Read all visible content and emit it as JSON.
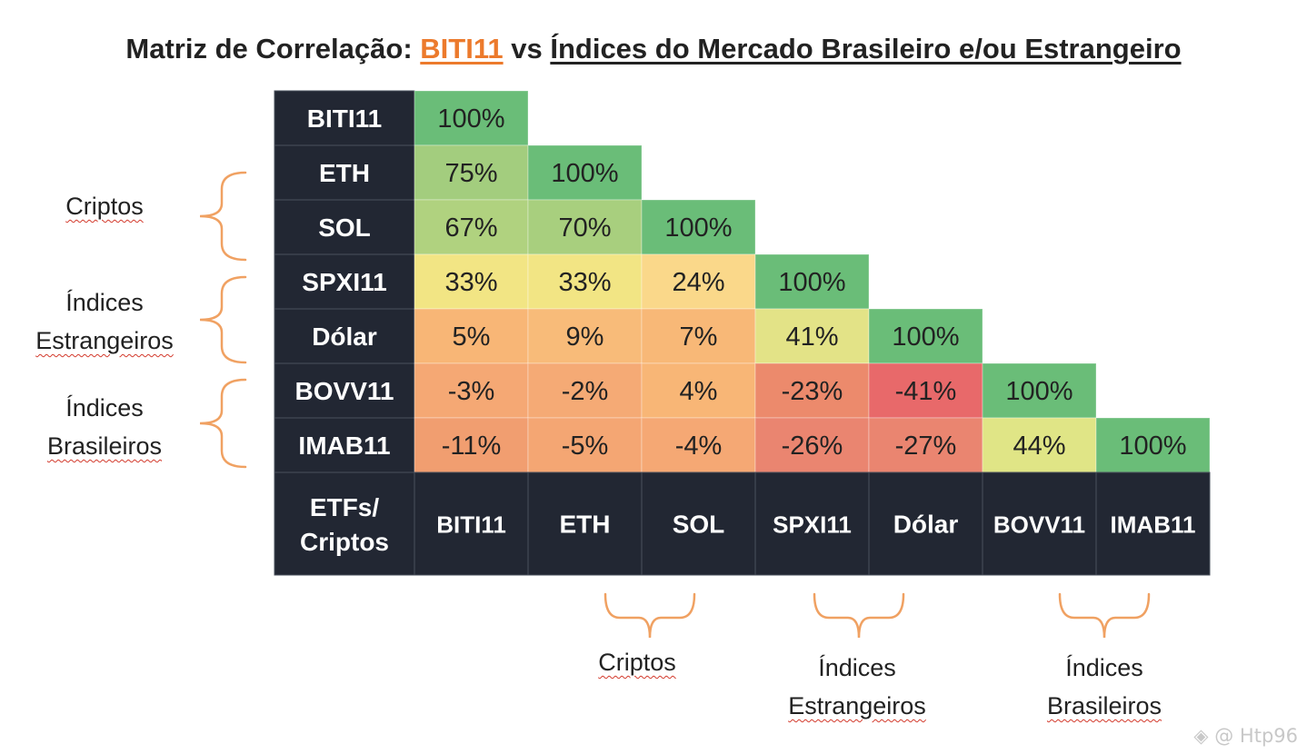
{
  "title": {
    "prefix": "Matriz de Correlação:",
    "highlight": "BITI11",
    "middle": "vs",
    "underlined": "Índices do Mercado Brasileiro e/ou Estrangeiro"
  },
  "colors": {
    "header_bg": "#222733",
    "header_text": "#ffffff",
    "accent": "#ec7a2c",
    "brace": "#f0a162"
  },
  "chart_data": {
    "type": "heatmap",
    "title": "Matriz de Correlação: BITI11 vs Índices do Mercado Brasileiro e/ou Estrangeiro",
    "rows": [
      "BITI11",
      "ETH",
      "SOL",
      "SPXI11",
      "Dólar",
      "BOVV11",
      "IMAB11"
    ],
    "columns": [
      "BITI11",
      "ETH",
      "SOL",
      "SPXI11",
      "Dólar",
      "BOVV11",
      "IMAB11"
    ],
    "corner_label": [
      "ETFs/",
      "Criptos"
    ],
    "values": [
      [
        100,
        null,
        null,
        null,
        null,
        null,
        null
      ],
      [
        75,
        100,
        null,
        null,
        null,
        null,
        null
      ],
      [
        67,
        70,
        100,
        null,
        null,
        null,
        null
      ],
      [
        33,
        33,
        24,
        100,
        null,
        null,
        null
      ],
      [
        5,
        9,
        7,
        41,
        100,
        null,
        null
      ],
      [
        -3,
        -2,
        4,
        -23,
        -41,
        100,
        null
      ],
      [
        -11,
        -5,
        -4,
        -26,
        -27,
        44,
        100
      ]
    ],
    "value_suffix": "%",
    "cell_colors": [
      [
        "#6abd78",
        null,
        null,
        null,
        null,
        null,
        null
      ],
      [
        "#a3cd7e",
        "#6abd78",
        null,
        null,
        null,
        null,
        null
      ],
      [
        "#b0d27f",
        "#a8cf7e",
        "#6abd78",
        null,
        null,
        null,
        null
      ],
      [
        "#f2e584",
        "#f2e584",
        "#fad88a",
        "#6abd78",
        null,
        null,
        null
      ],
      [
        "#f8b676",
        "#f8bb79",
        "#f8b877",
        "#e3e387",
        "#6abd78",
        null,
        null
      ],
      [
        "#f5a874",
        "#f5aa75",
        "#f8b676",
        "#ec8a6c",
        "#e8696a",
        "#6abd78",
        null
      ],
      [
        "#f19e70",
        "#f4a673",
        "#f5a874",
        "#ea8570",
        "#ea8570",
        "#e0e586",
        "#6abd78"
      ]
    ]
  },
  "groups": {
    "left": [
      {
        "lines": [
          "Criptos"
        ]
      },
      {
        "lines": [
          "Índices",
          "Estrangeiros"
        ]
      },
      {
        "lines": [
          "Índices",
          "Brasileiros"
        ]
      }
    ],
    "bottom": [
      {
        "lines": [
          "Criptos"
        ]
      },
      {
        "lines": [
          "Índices",
          "Estrangeiros"
        ]
      },
      {
        "lines": [
          "Índices",
          "Brasileiros"
        ]
      }
    ]
  },
  "watermark": "◈ @ Htp96"
}
